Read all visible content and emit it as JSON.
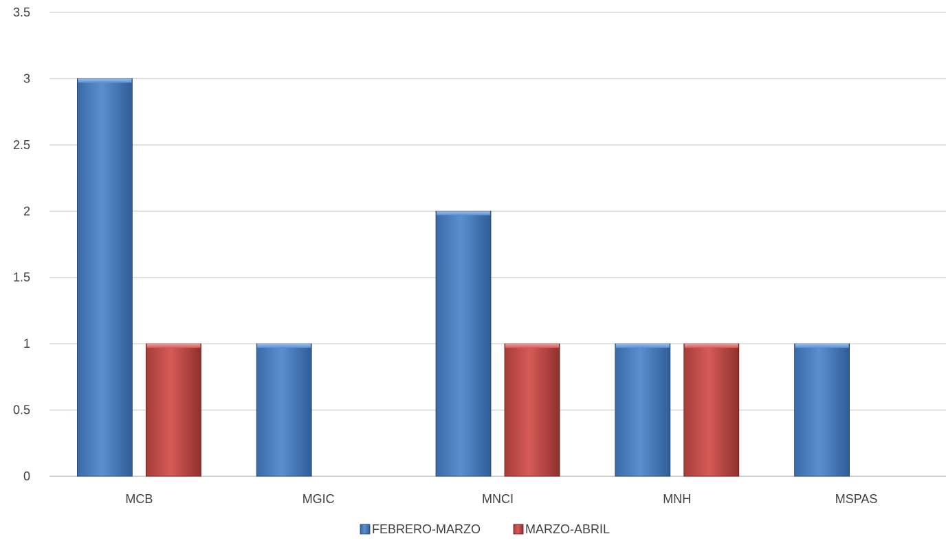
{
  "chart_data": {
    "type": "bar",
    "categories": [
      "MCB",
      "MGIC",
      "MNCI",
      "MNH",
      "MSPAS"
    ],
    "series": [
      {
        "name": "FEBRERO-MARZO",
        "values": [
          3,
          1,
          2,
          1,
          1
        ],
        "color": "#4a7ebb"
      },
      {
        "name": "MARZO-ABRIL",
        "values": [
          1,
          null,
          1,
          1,
          null
        ],
        "color": "#c0504d"
      }
    ],
    "y_ticks": [
      "0",
      "0.5",
      "1",
      "1.5",
      "2",
      "2.5",
      "3",
      "3.5"
    ],
    "ylim": [
      0,
      3.5
    ],
    "grid": true,
    "legend_position": "bottom"
  }
}
